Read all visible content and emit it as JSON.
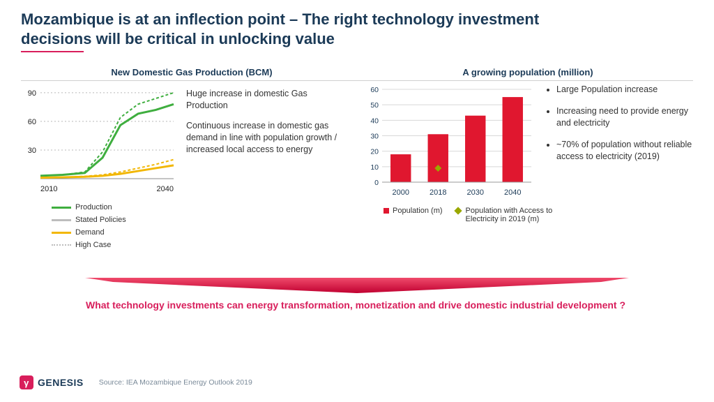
{
  "title_line1": "Mozambique is at an inflection point – The right technology investment",
  "title_line2": "decisions will be critical in unlocking value",
  "title_color": "#1b3a57",
  "accent_color": "#d81e5b",
  "gas_chart": {
    "title": "New Domestic Gas Production (BCM)",
    "type": "line",
    "x_range": [
      2010,
      2040
    ],
    "x_ticks": [
      2010,
      2040
    ],
    "y_range": [
      0,
      95
    ],
    "y_ticks": [
      30,
      60,
      90
    ],
    "grid_color": "#b8b8b8",
    "series": {
      "production_stated": {
        "color": "#3fae3f",
        "width": 3,
        "dash": "none",
        "points": [
          [
            2010,
            3
          ],
          [
            2015,
            4
          ],
          [
            2020,
            6
          ],
          [
            2024,
            22
          ],
          [
            2028,
            56
          ],
          [
            2032,
            68
          ],
          [
            2036,
            72
          ],
          [
            2040,
            78
          ]
        ]
      },
      "production_high": {
        "color": "#3fae3f",
        "width": 2,
        "dash": "4,3",
        "points": [
          [
            2010,
            3
          ],
          [
            2015,
            4
          ],
          [
            2020,
            7
          ],
          [
            2024,
            28
          ],
          [
            2028,
            64
          ],
          [
            2032,
            78
          ],
          [
            2036,
            84
          ],
          [
            2040,
            90
          ]
        ]
      },
      "demand_stated": {
        "color": "#f2b705",
        "width": 3,
        "dash": "none",
        "points": [
          [
            2010,
            1
          ],
          [
            2015,
            1.5
          ],
          [
            2020,
            2
          ],
          [
            2024,
            3
          ],
          [
            2028,
            5
          ],
          [
            2032,
            8
          ],
          [
            2036,
            11
          ],
          [
            2040,
            14
          ]
        ]
      },
      "demand_high": {
        "color": "#f2b705",
        "width": 2,
        "dash": "4,3",
        "points": [
          [
            2010,
            1
          ],
          [
            2015,
            1.5
          ],
          [
            2020,
            2.5
          ],
          [
            2024,
            4
          ],
          [
            2028,
            7
          ],
          [
            2032,
            11
          ],
          [
            2036,
            15
          ],
          [
            2040,
            20
          ]
        ]
      }
    },
    "desc1": "Huge increase in domestic Gas Production",
    "desc2": "Continuous increase in domestic gas demand in line with population growth / increased local access to energy",
    "legend": {
      "production": "Production",
      "demand": "Demand",
      "stated": "Stated Policies",
      "high": "High Case",
      "stated_color": "#bdbdbd"
    }
  },
  "pop_chart": {
    "title": "A growing population (million)",
    "type": "bar",
    "categories": [
      "2000",
      "2018",
      "2030",
      "2040"
    ],
    "values": [
      18,
      31,
      43,
      55
    ],
    "bar_color": "#e0172f",
    "y_range": [
      0,
      60
    ],
    "y_ticks": [
      0,
      10,
      20,
      30,
      40,
      50,
      60
    ],
    "grid_color": "#d8d8d8",
    "axis_label_color": "#1b3a57",
    "marker_year": "2018",
    "marker_value": 9,
    "marker_color": "#9aa800",
    "bullets": [
      "Large Population increase",
      "Increasing need to provide energy and electricity",
      "~70% of population without reliable access to electricity (2019)"
    ],
    "legend": {
      "pop": "Population (m)",
      "access": "Population with Access to Electricity in 2019 (m)"
    }
  },
  "callout": "What technology investments can energy  transformation, monetization and drive domestic industrial development ?",
  "logo_text": "GENESIS",
  "source": "Source: IEA  Mozambique Energy Outlook 2019"
}
